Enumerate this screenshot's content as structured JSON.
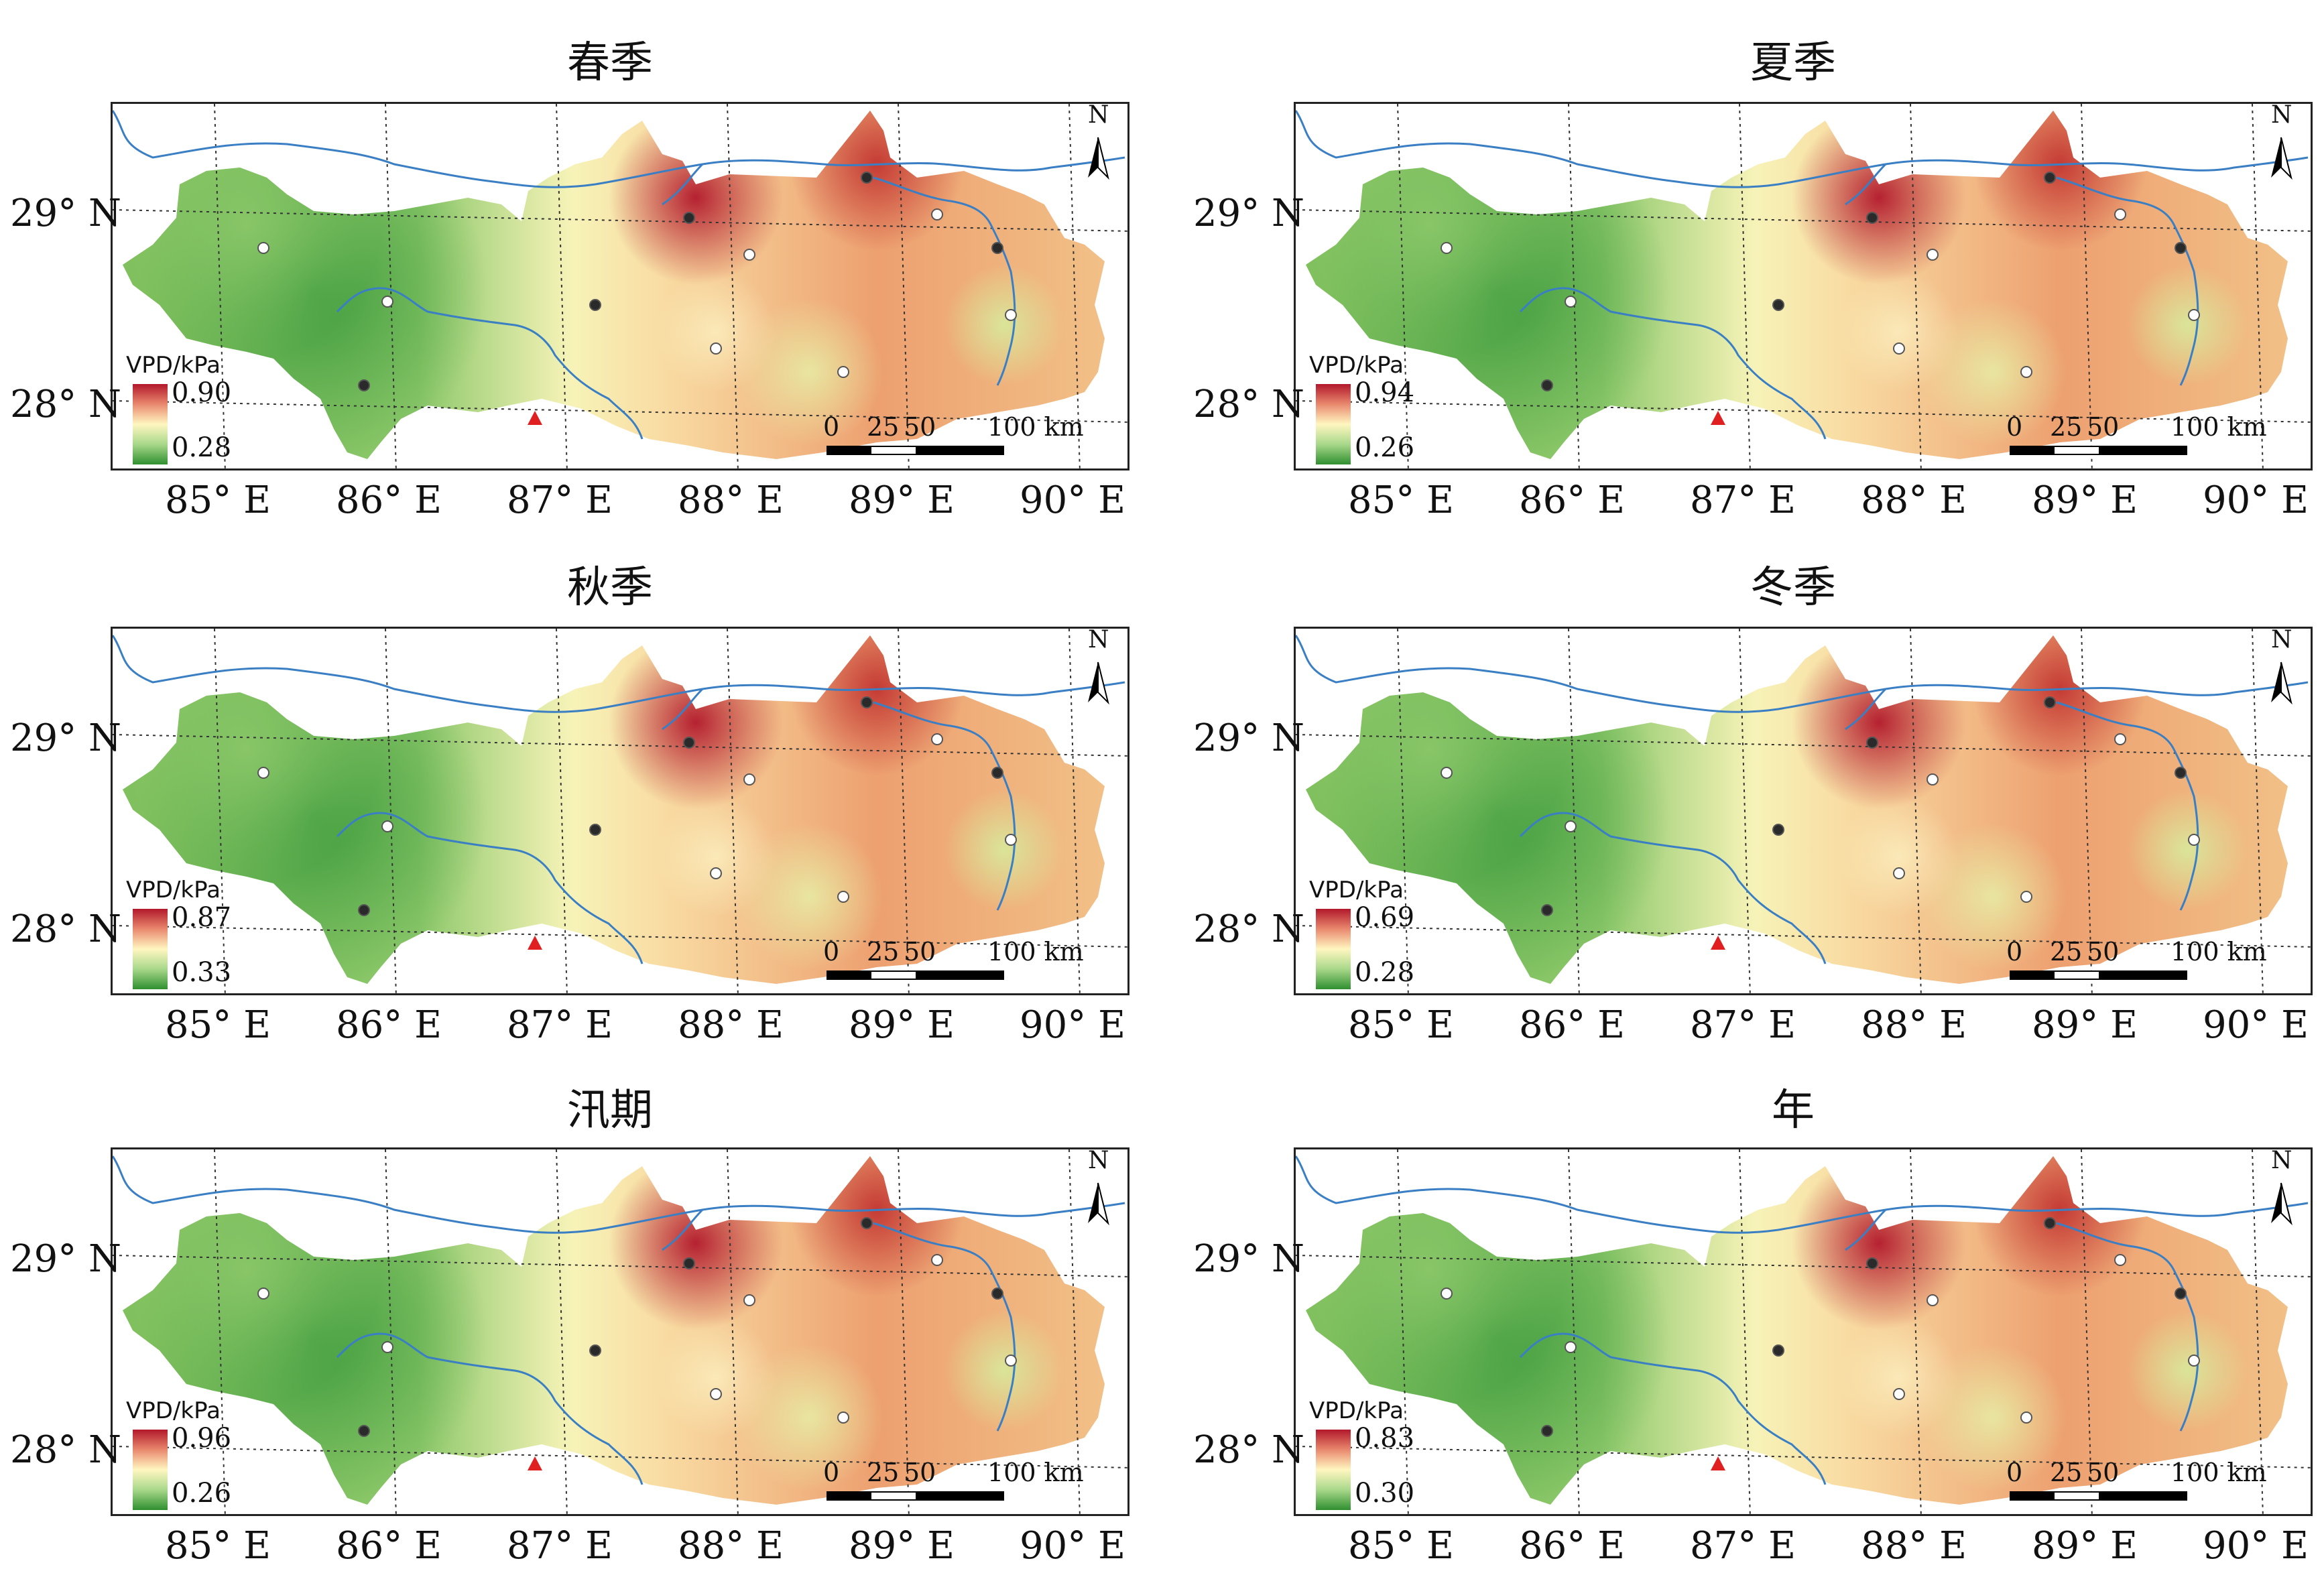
{
  "panels": [
    {
      "title": "春季",
      "legend_title": "VPD/kPa",
      "legend_max": "0.90",
      "legend_min": "0.28"
    },
    {
      "title": "夏季",
      "legend_title": "VPD/kPa",
      "legend_max": "0.94",
      "legend_min": "0.26"
    },
    {
      "title": "秋季",
      "legend_title": "VPD/kPa",
      "legend_max": "0.87",
      "legend_min": "0.33"
    },
    {
      "title": "冬季",
      "legend_title": "VPD/kPa",
      "legend_max": "0.69",
      "legend_min": "0.28"
    },
    {
      "title": "汛期",
      "legend_title": "VPD/kPa",
      "legend_max": "0.96",
      "legend_min": "0.26"
    },
    {
      "title": "年",
      "legend_title": "VPD/kPa",
      "legend_max": "0.83",
      "legend_min": "0.30"
    }
  ],
  "lat_labels": [
    "29° N",
    "28° N"
  ],
  "lon_labels": [
    "85° E",
    "86° E",
    "87° E",
    "88° E",
    "89° E",
    "90° E"
  ],
  "scale_bar": {
    "ticks": [
      "0",
      "25",
      "50",
      "100 km"
    ]
  },
  "north_arrow": "N",
  "colors": {
    "high": "#b2182b",
    "mid": "#fff7c0",
    "low": "#2f8f2f",
    "river": "#3a7fc4",
    "station_triangle": "#e02020"
  },
  "icons": [
    "north-arrow-icon",
    "station-dot-icon",
    "station-triangle-icon"
  ]
}
